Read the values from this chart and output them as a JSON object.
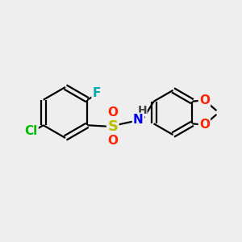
{
  "bg_color": "#eeeeee",
  "bond_color": "#000000",
  "bond_width": 1.6,
  "atom_colors": {
    "Cl": "#00bb00",
    "F": "#00aaaa",
    "S": "#bbbb00",
    "O": "#ff2200",
    "N": "#0000ee",
    "H": "#444444",
    "C": "#000000"
  },
  "font_size_atoms": 11,
  "fig_w": 3.0,
  "fig_h": 3.0,
  "dpi": 100
}
